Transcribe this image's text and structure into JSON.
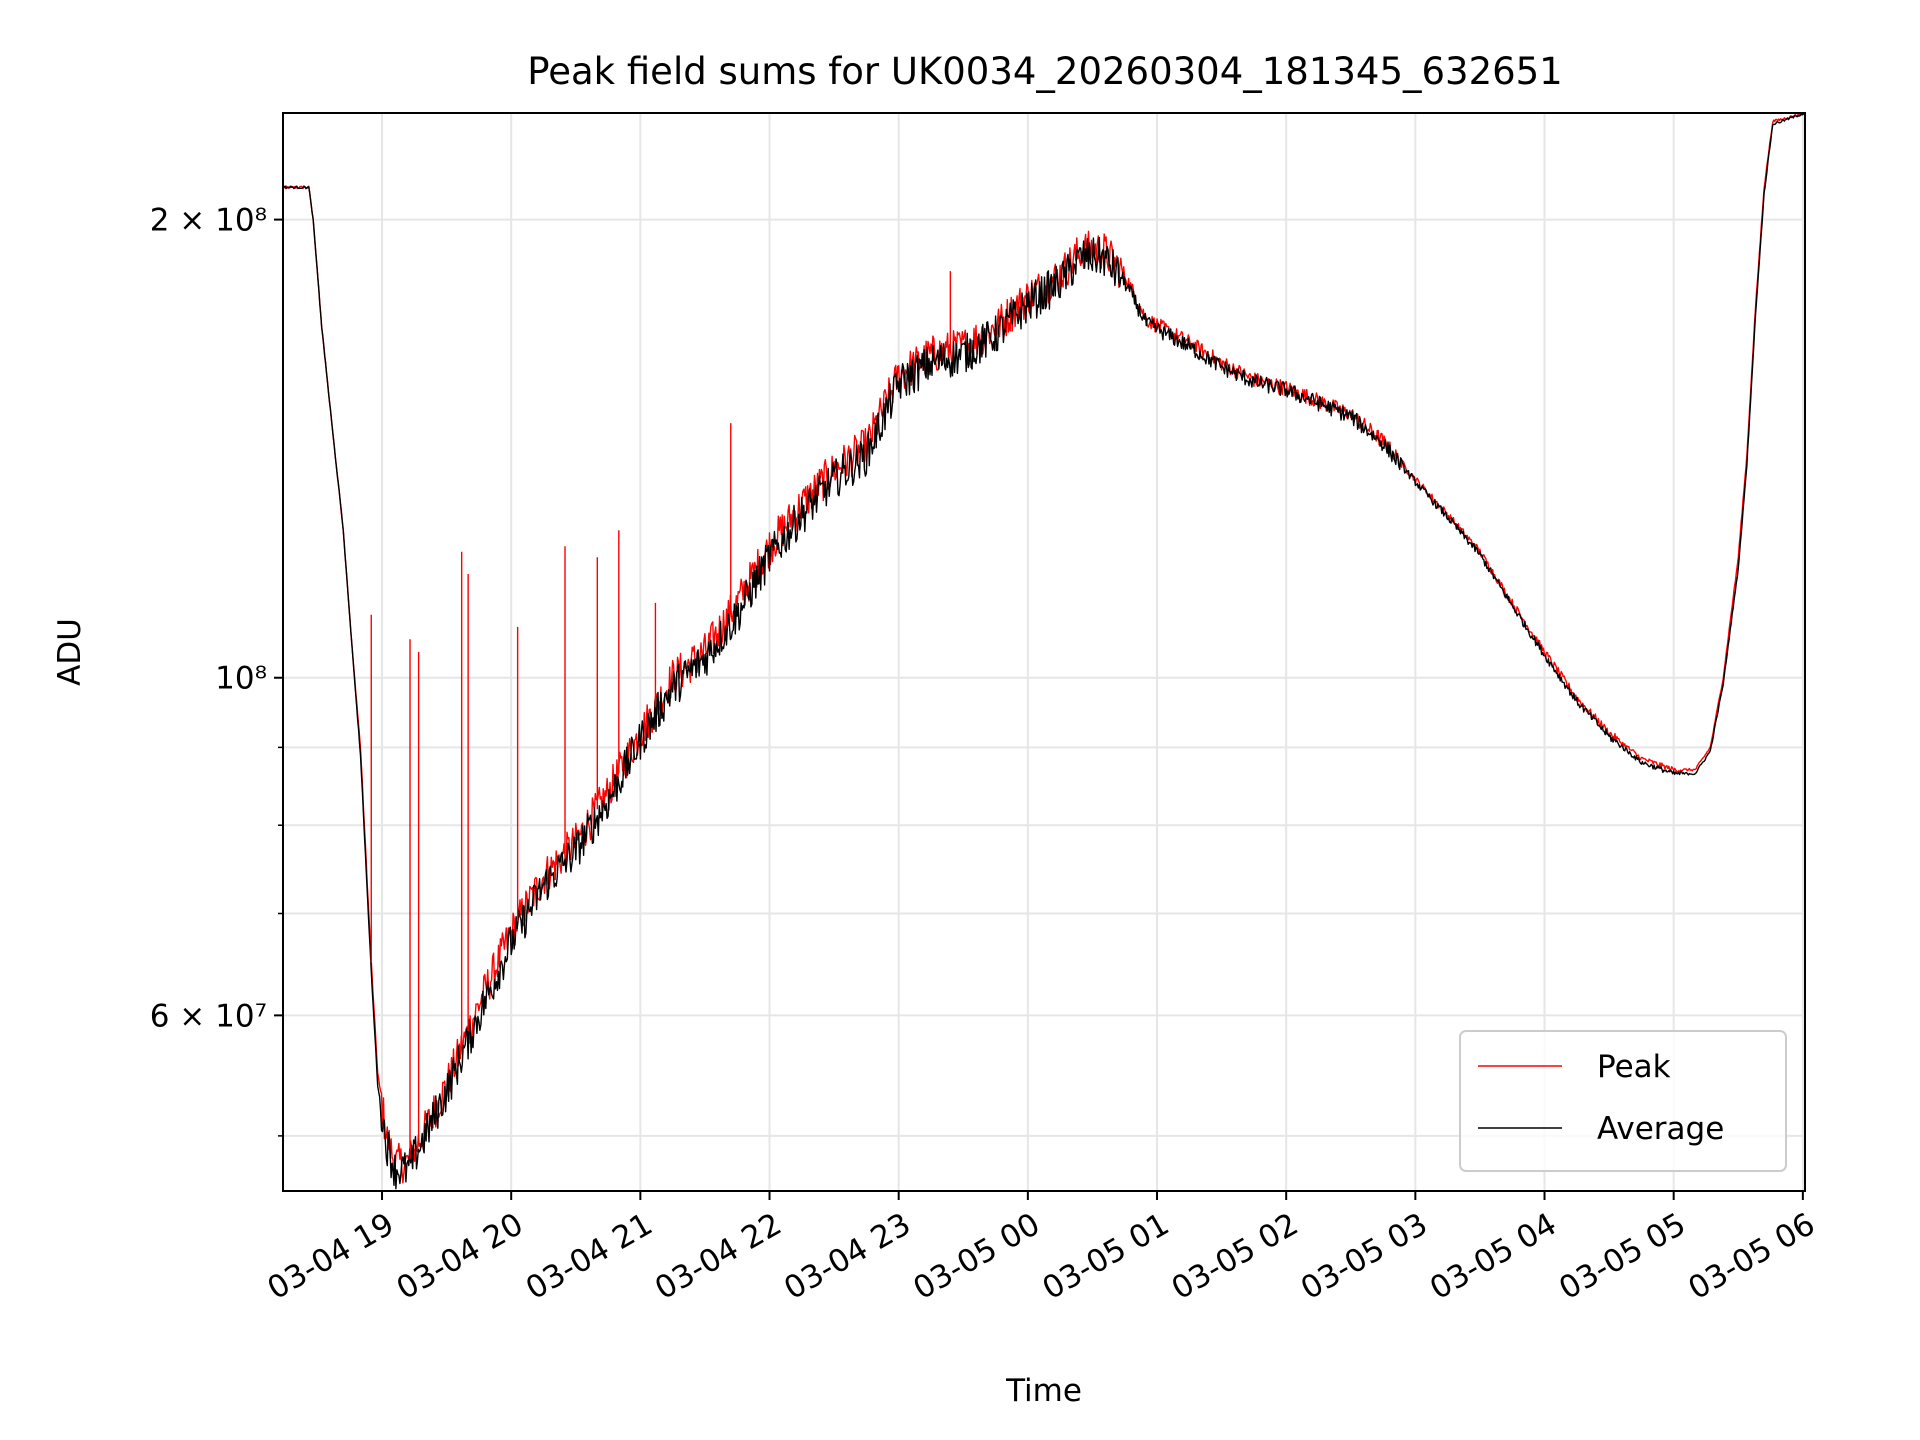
{
  "chart_data": {
    "type": "line",
    "title": "Peak field sums for UK0034_20260304_181345_632651",
    "xlabel": "Time",
    "ylabel": "ADU",
    "yscale": "log",
    "ylim": [
      46000000,
      235000000
    ],
    "xlim": [
      "03-04 18:14",
      "03-05 06:01"
    ],
    "grid": true,
    "legend_position": "lower-right",
    "x_ticks": [
      "03-04 19",
      "03-04 20",
      "03-04 21",
      "03-04 22",
      "03-04 23",
      "03-05 00",
      "03-05 01",
      "03-05 02",
      "03-05 03",
      "03-05 04",
      "03-05 05",
      "03-05 06"
    ],
    "y_ticks": [
      {
        "value": 200000000,
        "label": "2 × 10⁸"
      },
      {
        "value": 100000000,
        "label": "10⁸"
      },
      {
        "value": 60000000,
        "label": "6 × 10⁷"
      }
    ],
    "y_minor_ticks": [
      50000000,
      70000000,
      80000000,
      90000000
    ],
    "series": [
      {
        "name": "Peak",
        "color": "#ff0000",
        "points": [
          [
            "03-04 18:14",
            210000000
          ],
          [
            "03-04 18:26",
            210000000
          ],
          [
            "03-04 18:28",
            200000000
          ],
          [
            "03-04 18:32",
            170000000
          ],
          [
            "03-04 18:36",
            150000000
          ],
          [
            "03-04 18:42",
            125000000
          ],
          [
            "03-04 18:46",
            105000000
          ],
          [
            "03-04 18:50",
            90000000
          ],
          [
            "03-04 18:55",
            65000000
          ],
          [
            "03-04 18:58",
            55000000
          ],
          [
            "03-04 19:02",
            50000000
          ],
          [
            "03-04 19:06",
            48000000
          ],
          [
            "03-04 19:12",
            48000000
          ],
          [
            "03-04 19:20",
            50500000
          ],
          [
            "03-04 19:30",
            54000000
          ],
          [
            "03-04 19:45",
            61000000
          ],
          [
            "03-04 20:00",
            68000000
          ],
          [
            "03-04 20:15",
            74000000
          ],
          [
            "03-04 20:30",
            78000000
          ],
          [
            "03-04 20:45",
            84000000
          ],
          [
            "03-04 21:00",
            92000000
          ],
          [
            "03-04 21:15",
            100000000
          ],
          [
            "03-04 21:30",
            104000000
          ],
          [
            "03-04 21:45",
            112000000
          ],
          [
            "03-04 22:00",
            122000000
          ],
          [
            "03-04 22:15",
            130000000
          ],
          [
            "03-04 22:30",
            137000000
          ],
          [
            "03-04 22:45",
            142000000
          ],
          [
            "03-04 23:00",
            158000000
          ],
          [
            "03-04 23:15",
            163000000
          ],
          [
            "03-04 23:30",
            165000000
          ],
          [
            "03-04 23:45",
            170000000
          ],
          [
            "03-05 00:00",
            178000000
          ],
          [
            "03-05 00:15",
            184000000
          ],
          [
            "03-05 00:25",
            191000000
          ],
          [
            "03-05 00:35",
            191000000
          ],
          [
            "03-05 00:45",
            184000000
          ],
          [
            "03-05 00:55",
            172000000
          ],
          [
            "03-05 01:15",
            166000000
          ],
          [
            "03-05 01:30",
            161000000
          ],
          [
            "03-05 01:45",
            157000000
          ],
          [
            "03-05 02:00",
            155000000
          ],
          [
            "03-05 02:15",
            152000000
          ],
          [
            "03-05 02:30",
            149000000
          ],
          [
            "03-05 02:45",
            143000000
          ],
          [
            "03-05 03:00",
            135000000
          ],
          [
            "03-05 03:15",
            128000000
          ],
          [
            "03-05 03:30",
            121000000
          ],
          [
            "03-05 03:45",
            112000000
          ],
          [
            "03-05 04:00",
            104000000
          ],
          [
            "03-05 04:15",
            97000000
          ],
          [
            "03-05 04:30",
            92000000
          ],
          [
            "03-05 04:45",
            88500000
          ],
          [
            "03-05 05:00",
            87000000
          ],
          [
            "03-05 05:10",
            87000000
          ],
          [
            "03-05 05:17",
            90000000
          ],
          [
            "03-05 05:23",
            100000000
          ],
          [
            "03-05 05:30",
            120000000
          ],
          [
            "03-05 05:34",
            140000000
          ],
          [
            "03-05 05:38",
            175000000
          ],
          [
            "03-05 05:42",
            210000000
          ],
          [
            "03-05 05:46",
            232000000
          ],
          [
            "03-05 06:01",
            235000000
          ]
        ]
      },
      {
        "name": "Average",
        "color": "#000000",
        "points": [
          [
            "03-04 18:14",
            210000000
          ],
          [
            "03-04 18:26",
            210000000
          ],
          [
            "03-04 18:28",
            200000000
          ],
          [
            "03-04 18:32",
            170000000
          ],
          [
            "03-04 18:36",
            150000000
          ],
          [
            "03-04 18:42",
            125000000
          ],
          [
            "03-04 18:46",
            105000000
          ],
          [
            "03-04 18:50",
            89000000
          ],
          [
            "03-04 18:55",
            64000000
          ],
          [
            "03-04 18:58",
            54000000
          ],
          [
            "03-04 19:02",
            49500000
          ],
          [
            "03-04 19:06",
            47500000
          ],
          [
            "03-04 19:12",
            47500000
          ],
          [
            "03-04 19:20",
            50000000
          ],
          [
            "03-04 19:30",
            53500000
          ],
          [
            "03-04 19:45",
            60000000
          ],
          [
            "03-04 20:00",
            67000000
          ],
          [
            "03-04 20:15",
            73000000
          ],
          [
            "03-04 20:30",
            77000000
          ],
          [
            "03-04 20:45",
            83000000
          ],
          [
            "03-04 21:00",
            91000000
          ],
          [
            "03-04 21:15",
            98500000
          ],
          [
            "03-04 21:30",
            103000000
          ],
          [
            "03-04 21:45",
            110000000
          ],
          [
            "03-04 22:00",
            120000000
          ],
          [
            "03-04 22:15",
            128000000
          ],
          [
            "03-04 22:30",
            135000000
          ],
          [
            "03-04 22:45",
            140000000
          ],
          [
            "03-04 23:00",
            156000000
          ],
          [
            "03-04 23:15",
            161000000
          ],
          [
            "03-04 23:30",
            163000000
          ],
          [
            "03-04 23:45",
            168000000
          ],
          [
            "03-05 00:00",
            176000000
          ],
          [
            "03-05 00:15",
            182000000
          ],
          [
            "03-05 00:25",
            189000000
          ],
          [
            "03-05 00:35",
            189000000
          ],
          [
            "03-05 00:45",
            182000000
          ],
          [
            "03-05 00:55",
            171000000
          ],
          [
            "03-05 01:15",
            165000000
          ],
          [
            "03-05 01:30",
            160000000
          ],
          [
            "03-05 01:45",
            156500000
          ],
          [
            "03-05 02:00",
            154500000
          ],
          [
            "03-05 02:15",
            151500000
          ],
          [
            "03-05 02:30",
            148500000
          ],
          [
            "03-05 02:45",
            142500000
          ],
          [
            "03-05 03:00",
            134500000
          ],
          [
            "03-05 03:15",
            127500000
          ],
          [
            "03-05 03:30",
            120500000
          ],
          [
            "03-05 03:45",
            111500000
          ],
          [
            "03-05 04:00",
            103500000
          ],
          [
            "03-05 04:15",
            96500000
          ],
          [
            "03-05 04:30",
            91500000
          ],
          [
            "03-05 04:45",
            88000000
          ],
          [
            "03-05 05:00",
            86500000
          ],
          [
            "03-05 05:10",
            86500000
          ],
          [
            "03-05 05:17",
            89500000
          ],
          [
            "03-05 05:23",
            99000000
          ],
          [
            "03-05 05:30",
            118000000
          ],
          [
            "03-05 05:34",
            138000000
          ],
          [
            "03-05 05:38",
            173000000
          ],
          [
            "03-05 05:42",
            208000000
          ],
          [
            "03-05 05:46",
            231000000
          ],
          [
            "03-05 06:01",
            235000000
          ]
        ]
      }
    ],
    "spikes": [
      {
        "series": "Peak",
        "time": "03-04 18:55",
        "value": 110000000
      },
      {
        "series": "Peak",
        "time": "03-04 19:13",
        "value": 106000000
      },
      {
        "series": "Peak",
        "time": "03-04 19:17",
        "value": 104000000
      },
      {
        "series": "Peak",
        "time": "03-04 19:37",
        "value": 121000000
      },
      {
        "series": "Peak",
        "time": "03-04 19:40",
        "value": 117000000
      },
      {
        "series": "Peak",
        "time": "03-04 20:03",
        "value": 108000000
      },
      {
        "series": "Peak",
        "time": "03-04 20:25",
        "value": 122000000
      },
      {
        "series": "Peak",
        "time": "03-04 20:40",
        "value": 120000000
      },
      {
        "series": "Peak",
        "time": "03-04 20:50",
        "value": 125000000
      },
      {
        "series": "Peak",
        "time": "03-04 21:07",
        "value": 112000000
      },
      {
        "series": "Peak",
        "time": "03-04 21:42",
        "value": 147000000
      },
      {
        "series": "Peak",
        "time": "03-04 23:24",
        "value": 185000000
      }
    ]
  }
}
